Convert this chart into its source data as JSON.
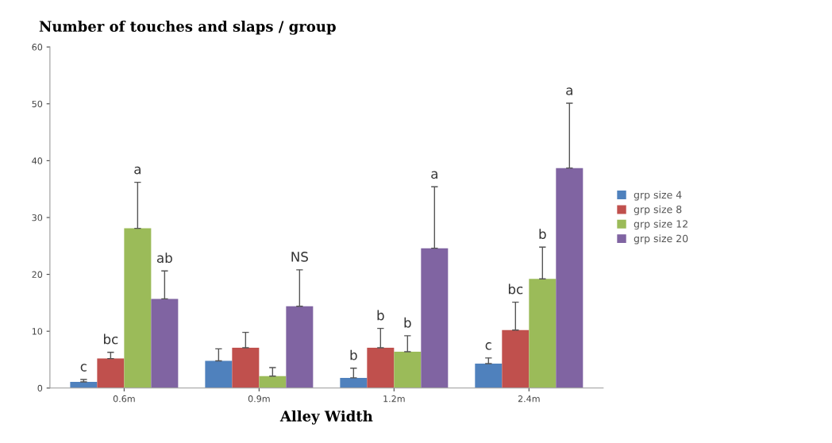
{
  "chart_data": {
    "type": "bar",
    "title": "Number of touches and slaps / group",
    "xlabel": "Alley Width",
    "categories": [
      "0.6m",
      "0.9m",
      "1.2m",
      "2.4m"
    ],
    "series": [
      {
        "name": "grp size 4",
        "color": "#4f81bd",
        "values": [
          1.1,
          4.8,
          1.8,
          4.3
        ],
        "errors": [
          0.4,
          2.1,
          1.7,
          1.0
        ],
        "value_labels": [
          "c",
          null,
          "b",
          "c"
        ]
      },
      {
        "name": "grp size 8",
        "color": "#c0504d",
        "values": [
          5.2,
          7.1,
          7.1,
          10.2
        ],
        "errors": [
          1.1,
          2.7,
          3.4,
          4.9
        ],
        "value_labels": [
          "bc",
          null,
          "b",
          "bc"
        ]
      },
      {
        "name": "grp size 12",
        "color": "#9bbb59",
        "values": [
          28.1,
          2.1,
          6.4,
          19.2
        ],
        "errors": [
          8.1,
          1.5,
          2.8,
          5.6
        ],
        "value_labels": [
          null,
          null,
          "b",
          "b"
        ]
      },
      {
        "name": "grp size 20",
        "color": "#8064a2",
        "values": [
          15.7,
          14.4,
          24.6,
          38.7
        ],
        "errors": [
          4.9,
          6.4,
          10.8,
          11.4
        ],
        "value_labels": [
          "ab",
          null,
          null,
          null
        ]
      }
    ],
    "annotations": [
      "a",
      "NS",
      "a",
      "a"
    ],
    "ylim": [
      0,
      60
    ],
    "yticks": [
      0,
      10,
      20,
      30,
      40,
      50,
      60
    ],
    "grid": false,
    "legend": "right"
  }
}
